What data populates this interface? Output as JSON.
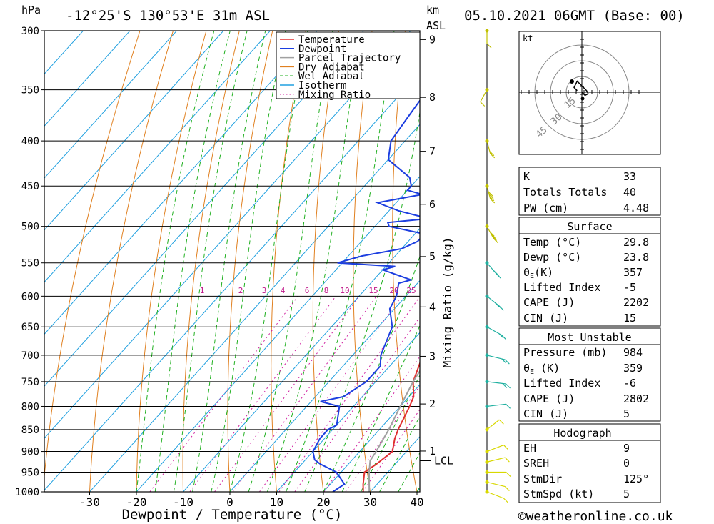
{
  "header": {
    "hpa_label": "hPa",
    "location": "-12°25'S  130°53'E  31m  ASL",
    "km_label": "km",
    "asl_label": "ASL",
    "datetime": "05.10.2021  06GMT  (Base: 00)"
  },
  "footer": {
    "copyright": "©weatheronline.co.uk"
  },
  "chart_data": {
    "type": "line",
    "xlabel": "Dewpoint / Temperature (°C)",
    "ylabel": "Mixing Ratio (g/kg)",
    "x_ticks": [
      -30,
      -20,
      -10,
      0,
      10,
      20,
      30,
      40
    ],
    "pressure_levels": [
      300,
      350,
      400,
      450,
      500,
      550,
      600,
      650,
      700,
      750,
      800,
      850,
      900,
      950,
      1000
    ],
    "km_ticks": [
      {
        "label": "1",
        "p": 899
      },
      {
        "label": "2",
        "p": 795
      },
      {
        "label": "3",
        "p": 702
      },
      {
        "label": "4",
        "p": 617
      },
      {
        "label": "5",
        "p": 541
      },
      {
        "label": "6",
        "p": 472
      },
      {
        "label": "7",
        "p": 411
      },
      {
        "label": "8",
        "p": 357
      },
      {
        "label": "9",
        "p": 307
      }
    ],
    "lcl_label": "LCL",
    "lcl_pressure": 922,
    "mixing_ratio_labels": [
      "1",
      "2",
      "3",
      "4",
      "6",
      "8",
      "10",
      "15",
      "20",
      "25"
    ],
    "mixing_ratio_values": [
      1,
      2,
      3,
      4,
      6,
      8,
      10,
      15,
      20,
      25
    ],
    "legend": [
      {
        "name": "Temperature",
        "color": "#e03030",
        "style": "solid"
      },
      {
        "name": "Dewpoint",
        "color": "#1c3ee0",
        "style": "solid"
      },
      {
        "name": "Parcel Trajectory",
        "color": "#a0a0a0",
        "style": "solid"
      },
      {
        "name": "Dry Adiabat",
        "color": "#e08020",
        "style": "solid"
      },
      {
        "name": "Wet Adiabat",
        "color": "#20b020",
        "style": "dashed"
      },
      {
        "name": "Isotherm",
        "color": "#20a0e0",
        "style": "solid"
      },
      {
        "name": "Mixing Ratio",
        "color": "#d020a0",
        "style": "dotted"
      }
    ],
    "series": [
      {
        "name": "Temperature",
        "values": [
          [
            1000,
            28.5
          ],
          [
            980,
            27
          ],
          [
            950,
            25
          ],
          [
            930,
            26
          ],
          [
            900,
            27
          ],
          [
            870,
            25
          ],
          [
            850,
            24
          ],
          [
            800,
            22
          ],
          [
            780,
            21
          ],
          [
            750,
            18
          ],
          [
            700,
            15
          ],
          [
            650,
            12
          ],
          [
            600,
            9
          ],
          [
            575,
            8
          ],
          [
            550,
            6
          ],
          [
            525,
            4
          ],
          [
            500,
            2
          ],
          [
            475,
            0
          ],
          [
            450,
            -3
          ],
          [
            440,
            -2
          ],
          [
            425,
            -3
          ],
          [
            400,
            -7
          ],
          [
            375,
            -11
          ],
          [
            360,
            -13
          ],
          [
            350,
            -14
          ]
        ]
      },
      {
        "name": "Dewpoint",
        "values": [
          [
            1000,
            22
          ],
          [
            980,
            23
          ],
          [
            950,
            19
          ],
          [
            930,
            14
          ],
          [
            920,
            12
          ],
          [
            900,
            10
          ],
          [
            870,
            9
          ],
          [
            850,
            9
          ],
          [
            840,
            10
          ],
          [
            800,
            7
          ],
          [
            790,
            2
          ],
          [
            780,
            6
          ],
          [
            750,
            8
          ],
          [
            720,
            8
          ],
          [
            700,
            6
          ],
          [
            650,
            3
          ],
          [
            620,
            -1
          ],
          [
            600,
            -2
          ],
          [
            580,
            -4
          ],
          [
            575,
            -2
          ],
          [
            560,
            -10
          ],
          [
            555,
            -8
          ],
          [
            550,
            -21
          ],
          [
            540,
            -17
          ],
          [
            530,
            -10
          ],
          [
            520,
            -8
          ],
          [
            510,
            -8
          ],
          [
            500,
            -17
          ],
          [
            495,
            -18
          ],
          [
            490,
            -10
          ],
          [
            480,
            -18
          ],
          [
            470,
            -24
          ],
          [
            460,
            -16
          ],
          [
            455,
            -20
          ],
          [
            450,
            -20
          ],
          [
            440,
            -22
          ],
          [
            420,
            -30
          ],
          [
            400,
            -33
          ],
          [
            375,
            -34
          ],
          [
            350,
            -35
          ],
          [
            325,
            -38
          ],
          [
            310,
            -40
          ],
          [
            300,
            -41
          ]
        ]
      },
      {
        "name": "Parcel Trajectory",
        "values": [
          [
            1000,
            29.8
          ],
          [
            950,
            26
          ],
          [
            922,
            24
          ],
          [
            900,
            23.5
          ],
          [
            850,
            22
          ],
          [
            800,
            20
          ],
          [
            750,
            18
          ],
          [
            700,
            16.5
          ],
          [
            650,
            14
          ],
          [
            600,
            12
          ],
          [
            550,
            9
          ],
          [
            500,
            6
          ],
          [
            450,
            2
          ],
          [
            400,
            -3
          ],
          [
            375,
            -6
          ],
          [
            360,
            -8
          ]
        ]
      }
    ],
    "wind_barbs": [
      {
        "p": 1000,
        "dir": 120,
        "spd": 5
      },
      {
        "p": 975,
        "dir": 110,
        "spd": 5
      },
      {
        "p": 950,
        "dir": 90,
        "spd": 5
      },
      {
        "p": 925,
        "dir": 70,
        "spd": 5
      },
      {
        "p": 900,
        "dir": 60,
        "spd": 5
      },
      {
        "p": 850,
        "dir": 40,
        "spd": 5
      },
      {
        "p": 800,
        "dir": 80,
        "spd": 5
      },
      {
        "p": 750,
        "dir": 100,
        "spd": 10
      },
      {
        "p": 700,
        "dir": 110,
        "spd": 10
      },
      {
        "p": 650,
        "dir": 130,
        "spd": 10
      },
      {
        "p": 600,
        "dir": 140,
        "spd": 15
      },
      {
        "p": 550,
        "dir": 150,
        "spd": 15
      },
      {
        "p": 500,
        "dir": 160,
        "spd": 20
      },
      {
        "p": 450,
        "dir": 170,
        "spd": 20
      },
      {
        "p": 400,
        "dir": 170,
        "spd": 10
      },
      {
        "p": 350,
        "dir": 200,
        "spd": 5
      },
      {
        "p": 300,
        "dir": 180,
        "spd": 5
      }
    ],
    "hodograph": {
      "unit_label": "kt",
      "ring_labels": [
        "15",
        "30",
        "45"
      ],
      "points": [
        [
          0,
          0
        ],
        [
          2,
          2
        ],
        [
          4,
          1
        ],
        [
          3,
          -1
        ],
        [
          1,
          -3
        ],
        [
          -3,
          -7
        ],
        [
          -5,
          -3
        ],
        [
          -3,
          -1
        ]
      ]
    }
  },
  "indices": {
    "k_label": "K",
    "k_value": "33",
    "tt_label": "Totals Totals",
    "tt_value": "40",
    "pw_label": "PW (cm)",
    "pw_value": "4.48"
  },
  "surface": {
    "title": "Surface",
    "temp_label": "Temp (°C)",
    "temp_value": "29.8",
    "dewp_label": "Dewp (°C)",
    "dewp_value": "23.8",
    "thetae_sym": "θ",
    "thetae_sub": "E",
    "thetae_unit": "(K)",
    "thetae_value": "357",
    "li_label": "Lifted Index",
    "li_value": "-5",
    "cape_label": "CAPE (J)",
    "cape_value": "2202",
    "cin_label": "CIN (J)",
    "cin_value": "15"
  },
  "most_unstable": {
    "title": "Most Unstable",
    "pressure_label": "Pressure (mb)",
    "pressure_value": "984",
    "thetae_sym": "θ",
    "thetae_sub": "E",
    "thetae_unit": " (K)",
    "thetae_value": "359",
    "li_label": "Lifted Index",
    "li_value": "-6",
    "cape_label": "CAPE (J)",
    "cape_value": "2802",
    "cin_label": "CIN (J)",
    "cin_value": "5"
  },
  "hodograph_table": {
    "title": "Hodograph",
    "eh_label": "EH",
    "eh_value": "9",
    "sreh_label": "SREH",
    "sreh_value": "0",
    "stmdir_label": "StmDir",
    "stmdir_value": "125°",
    "stmspd_label": "StmSpd (kt)",
    "stmspd_value": "5"
  }
}
